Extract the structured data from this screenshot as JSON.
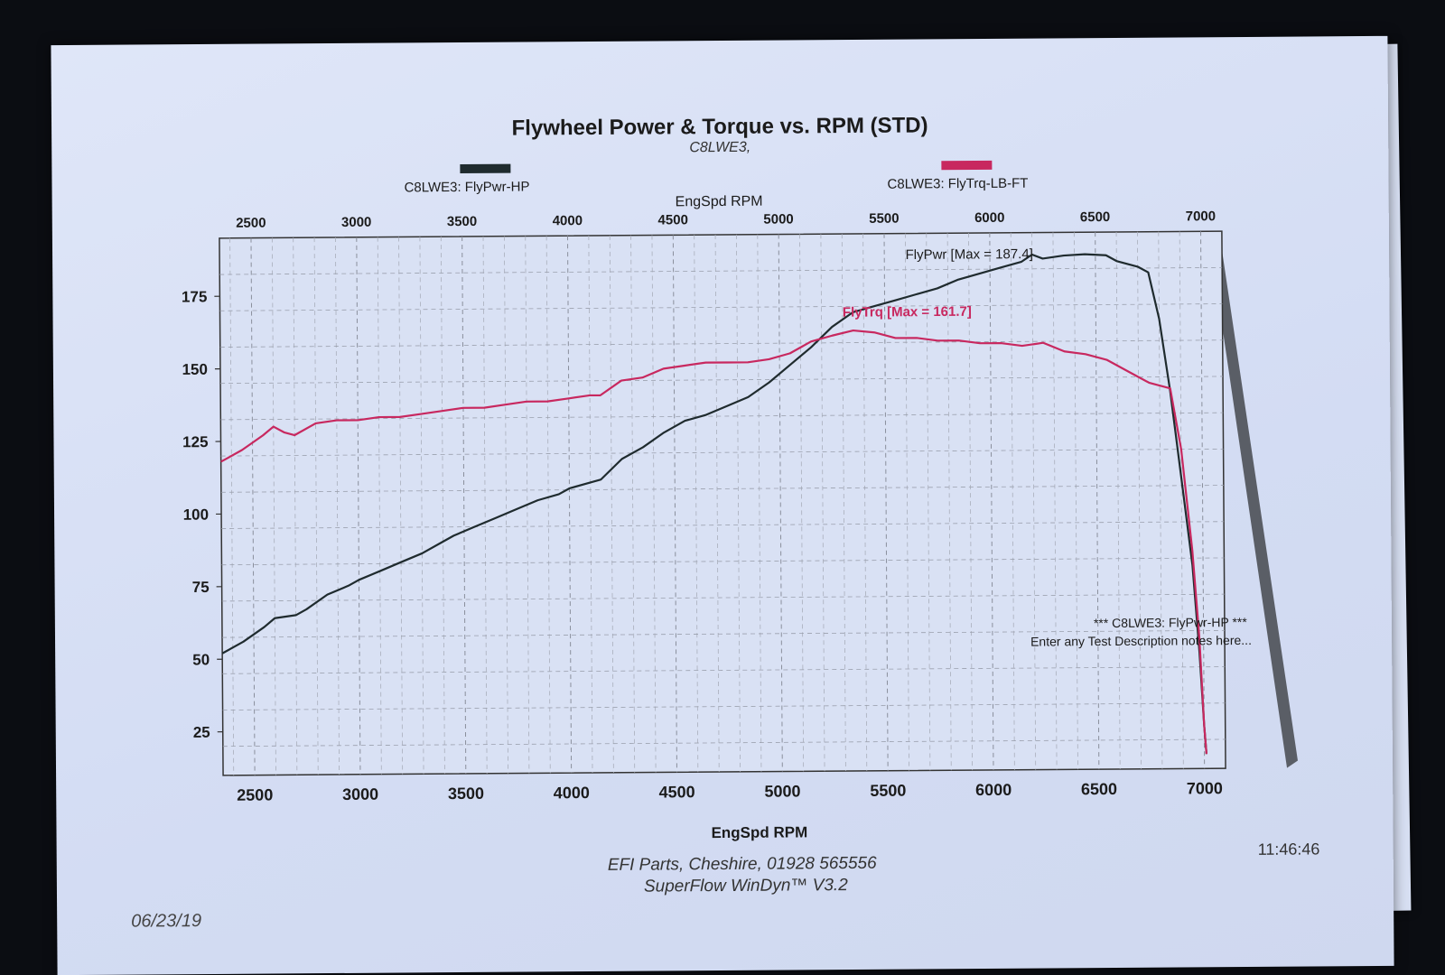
{
  "document": {
    "title": "Flywheel Power & Torque vs. RPM (STD)",
    "subtitle": "C8LWE3,",
    "date": "06/23/19",
    "time": "11:46:46",
    "footer_line1": "EFI Parts, Cheshire, 01928 565556",
    "footer_line2": "SuperFlow WinDyn™ V3.2",
    "note_line1": "*** C8LWE3: FlyPwr-HP       ***",
    "note_line2": "Enter any Test Description notes here..."
  },
  "chart_data": {
    "type": "line",
    "title": "Flywheel Power & Torque vs. RPM (STD)",
    "xlabel": "EngSpd RPM",
    "ylabel": "",
    "xlim": [
      2350,
      7100
    ],
    "ylim": [
      10,
      195
    ],
    "x_ticks": [
      2500,
      3000,
      3500,
      4000,
      4500,
      5000,
      5500,
      6000,
      6500,
      7000
    ],
    "y_ticks": [
      25,
      50,
      75,
      100,
      125,
      150,
      175
    ],
    "grid": true,
    "legend_position": "top",
    "series": [
      {
        "name": "C8LWE3: FlyPwr-HP",
        "color": "#1f2b2e",
        "annotation": "FlyPwr [Max = 187.4]",
        "points": [
          [
            2350,
            52
          ],
          [
            2450,
            56
          ],
          [
            2550,
            61
          ],
          [
            2600,
            64
          ],
          [
            2700,
            65
          ],
          [
            2750,
            67
          ],
          [
            2850,
            72
          ],
          [
            2950,
            75
          ],
          [
            3000,
            77
          ],
          [
            3100,
            80
          ],
          [
            3200,
            83
          ],
          [
            3300,
            86
          ],
          [
            3400,
            90
          ],
          [
            3450,
            92
          ],
          [
            3550,
            95
          ],
          [
            3650,
            98
          ],
          [
            3750,
            101
          ],
          [
            3850,
            104
          ],
          [
            3950,
            106
          ],
          [
            4000,
            108
          ],
          [
            4100,
            110
          ],
          [
            4150,
            111
          ],
          [
            4250,
            118
          ],
          [
            4350,
            122
          ],
          [
            4450,
            127
          ],
          [
            4550,
            131
          ],
          [
            4650,
            133
          ],
          [
            4750,
            136
          ],
          [
            4850,
            139
          ],
          [
            4950,
            144
          ],
          [
            5050,
            150
          ],
          [
            5150,
            156
          ],
          [
            5250,
            163
          ],
          [
            5350,
            168
          ],
          [
            5450,
            170
          ],
          [
            5550,
            172
          ],
          [
            5650,
            174
          ],
          [
            5750,
            176
          ],
          [
            5850,
            179
          ],
          [
            5950,
            181
          ],
          [
            6050,
            183
          ],
          [
            6150,
            185
          ],
          [
            6200,
            187.4
          ],
          [
            6250,
            186
          ],
          [
            6350,
            187
          ],
          [
            6450,
            187.4
          ],
          [
            6550,
            187
          ],
          [
            6600,
            185
          ],
          [
            6700,
            183
          ],
          [
            6750,
            181
          ],
          [
            6800,
            165
          ],
          [
            6850,
            140
          ],
          [
            6900,
            110
          ],
          [
            6950,
            80
          ],
          [
            6980,
            50
          ],
          [
            7000,
            25
          ],
          [
            7010,
            15
          ]
        ]
      },
      {
        "name": "C8LWE3: FlyTrq-LB-FT",
        "color": "#c8285f",
        "annotation": "FlyTrq [Max = 161.7]",
        "points": [
          [
            2350,
            118
          ],
          [
            2450,
            122
          ],
          [
            2550,
            127
          ],
          [
            2600,
            130
          ],
          [
            2650,
            128
          ],
          [
            2700,
            127
          ],
          [
            2800,
            131
          ],
          [
            2900,
            132
          ],
          [
            3000,
            132
          ],
          [
            3100,
            133
          ],
          [
            3200,
            133
          ],
          [
            3300,
            134
          ],
          [
            3400,
            135
          ],
          [
            3500,
            136
          ],
          [
            3600,
            136
          ],
          [
            3700,
            137
          ],
          [
            3800,
            138
          ],
          [
            3900,
            138
          ],
          [
            4000,
            139
          ],
          [
            4100,
            140
          ],
          [
            4150,
            140
          ],
          [
            4250,
            145
          ],
          [
            4350,
            146
          ],
          [
            4450,
            149
          ],
          [
            4550,
            150
          ],
          [
            4650,
            151
          ],
          [
            4750,
            151
          ],
          [
            4850,
            151
          ],
          [
            4950,
            152
          ],
          [
            5050,
            154
          ],
          [
            5150,
            158
          ],
          [
            5250,
            160
          ],
          [
            5350,
            161.7
          ],
          [
            5450,
            161
          ],
          [
            5550,
            159
          ],
          [
            5650,
            159
          ],
          [
            5750,
            158
          ],
          [
            5850,
            158
          ],
          [
            5950,
            157
          ],
          [
            6050,
            157
          ],
          [
            6150,
            156
          ],
          [
            6250,
            157
          ],
          [
            6350,
            154
          ],
          [
            6450,
            153
          ],
          [
            6550,
            151
          ],
          [
            6650,
            147
          ],
          [
            6750,
            143
          ],
          [
            6850,
            141
          ],
          [
            6900,
            120
          ],
          [
            6950,
            85
          ],
          [
            6980,
            55
          ],
          [
            7000,
            25
          ],
          [
            7010,
            15
          ]
        ]
      }
    ]
  }
}
